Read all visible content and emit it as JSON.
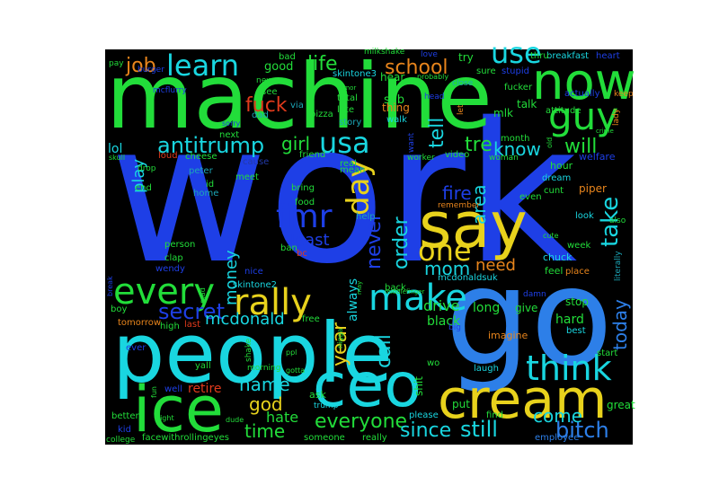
{
  "wordcloud": {
    "background": "#000000",
    "palette": {
      "blue": "#1e3fe6",
      "lightblue": "#2d7fe8",
      "cyan": "#19d6e0",
      "green": "#22dd3a",
      "lime": "#a8dd22",
      "yellow": "#e8d21c",
      "orange": "#e8851c",
      "red": "#e03a1c",
      "darkblue": "#233aa8",
      "teal": "#1ca7b8"
    },
    "words": [
      {
        "text": "work",
        "color": "blue",
        "rank": 1
      },
      {
        "text": "machine",
        "color": "green",
        "rank": 2
      },
      {
        "text": "people",
        "color": "cyan",
        "rank": 3
      },
      {
        "text": "go",
        "color": "lightblue",
        "rank": 4
      },
      {
        "text": "ceo",
        "color": "cyan",
        "rank": 5
      },
      {
        "text": "ice",
        "color": "green",
        "rank": 6
      },
      {
        "text": "cream",
        "color": "yellow",
        "rank": 7
      },
      {
        "text": "say",
        "color": "yellow",
        "rank": 8
      },
      {
        "text": "now",
        "color": "green",
        "rank": 9
      },
      {
        "text": "guy",
        "color": "green",
        "rank": 10
      },
      {
        "text": "every",
        "color": "green",
        "rank": 11
      },
      {
        "text": "rally",
        "color": "yellow",
        "rank": 12
      },
      {
        "text": "make",
        "color": "cyan",
        "rank": 13
      },
      {
        "text": "think",
        "color": "cyan",
        "rank": 14
      },
      {
        "text": "learn",
        "color": "cyan",
        "rank": 15
      },
      {
        "text": "fmr",
        "color": "blue",
        "rank": 16
      },
      {
        "text": "one",
        "color": "yellow",
        "rank": 17
      },
      {
        "text": "day",
        "color": "yellow",
        "rank": 18
      },
      {
        "text": "usa",
        "color": "cyan",
        "rank": 19
      },
      {
        "text": "use",
        "color": "cyan",
        "rank": 20
      },
      {
        "text": "antitrump",
        "color": "cyan",
        "rank": 21
      },
      {
        "text": "secret",
        "color": "blue",
        "rank": 22
      },
      {
        "text": "take",
        "color": "cyan",
        "rank": 23
      },
      {
        "text": "still",
        "color": "cyan",
        "rank": 24
      },
      {
        "text": "bitch",
        "color": "lightblue",
        "rank": 25
      },
      {
        "text": "school",
        "color": "orange",
        "rank": 26
      },
      {
        "text": "everyone",
        "color": "green",
        "rank": 27
      },
      {
        "text": "since",
        "color": "cyan",
        "rank": 28
      },
      {
        "text": "mcdonald",
        "color": "cyan",
        "rank": 29
      },
      {
        "text": "fuck",
        "color": "red",
        "rank": 30
      },
      {
        "text": "life",
        "color": "green",
        "rank": 31
      },
      {
        "text": "job",
        "color": "orange",
        "rank": 32
      },
      {
        "text": "girl",
        "color": "green",
        "rank": 33
      },
      {
        "text": "tell",
        "color": "cyan",
        "rank": 34
      },
      {
        "text": "tre",
        "color": "green",
        "rank": 35
      },
      {
        "text": "know",
        "color": "cyan",
        "rank": 36
      },
      {
        "text": "will",
        "color": "green",
        "rank": 37
      },
      {
        "text": "fire",
        "color": "blue",
        "rank": 38
      },
      {
        "text": "area",
        "color": "cyan",
        "rank": 39
      },
      {
        "text": "mom",
        "color": "cyan",
        "rank": 40
      },
      {
        "text": "need",
        "color": "orange",
        "rank": 41
      },
      {
        "text": "order",
        "color": "cyan",
        "rank": 42
      },
      {
        "text": "never",
        "color": "blue",
        "rank": 43
      },
      {
        "text": "least",
        "color": "blue",
        "rank": 44
      },
      {
        "text": "year",
        "color": "yellow",
        "rank": 45
      },
      {
        "text": "call",
        "color": "cyan",
        "rank": 46
      },
      {
        "text": "time",
        "color": "green",
        "rank": 47
      },
      {
        "text": "name",
        "color": "cyan",
        "rank": 48
      },
      {
        "text": "god",
        "color": "yellow",
        "rank": 49
      },
      {
        "text": "come",
        "color": "cyan",
        "rank": 50
      },
      {
        "text": "today",
        "color": "lightblue",
        "rank": 51
      },
      {
        "text": "play",
        "color": "cyan",
        "rank": 52
      },
      {
        "text": "money",
        "color": "cyan",
        "rank": 53
      },
      {
        "text": "hate",
        "color": "green",
        "rank": 54
      },
      {
        "text": "lol",
        "color": "cyan",
        "rank": 55
      },
      {
        "text": "drive",
        "color": "green",
        "rank": 56
      },
      {
        "text": "black",
        "color": "green",
        "rank": 57
      },
      {
        "text": "hard",
        "color": "green",
        "rank": 58
      },
      {
        "text": "always",
        "color": "cyan",
        "rank": 59
      },
      {
        "text": "retire",
        "color": "red",
        "rank": 60
      },
      {
        "text": "long",
        "color": "green",
        "rank": 61
      },
      {
        "text": "good",
        "color": "green",
        "rank": 62
      },
      {
        "text": "bad",
        "color": "green",
        "rank": 63
      },
      {
        "text": "hear",
        "color": "green",
        "rank": 64
      },
      {
        "text": "try",
        "color": "green",
        "rank": 65
      },
      {
        "text": "sob",
        "color": "green",
        "rank": 66
      },
      {
        "text": "mlk",
        "color": "green",
        "rank": 67
      },
      {
        "text": "talk",
        "color": "green",
        "rank": 68
      },
      {
        "text": "thing",
        "color": "orange",
        "rank": 69
      },
      {
        "text": "skintone3",
        "color": "cyan",
        "rank": 70
      },
      {
        "text": "skintone2",
        "color": "cyan",
        "rank": 71
      },
      {
        "text": "mcdonaldsuk",
        "color": "cyan",
        "rank": 72
      },
      {
        "text": "facewithrollingeyes",
        "color": "green",
        "rank": 73
      },
      {
        "text": "employee",
        "color": "lightblue",
        "rank": 74
      },
      {
        "text": "breakfast",
        "color": "cyan",
        "rank": 75
      },
      {
        "text": "heart",
        "color": "blue",
        "rank": 76
      },
      {
        "text": "milkshake",
        "color": "green",
        "rank": 77
      },
      {
        "text": "imagine",
        "color": "orange",
        "rank": 78
      },
      {
        "text": "give",
        "color": "green",
        "rank": 79
      },
      {
        "text": "stop",
        "color": "green",
        "rank": 80
      },
      {
        "text": "best",
        "color": "cyan",
        "rank": 81
      },
      {
        "text": "start",
        "color": "green",
        "rank": 82
      },
      {
        "text": "great",
        "color": "green",
        "rank": 83
      },
      {
        "text": "laugh",
        "color": "cyan",
        "rank": 84
      },
      {
        "text": "put",
        "color": "green",
        "rank": 85
      },
      {
        "text": "wo",
        "color": "green",
        "rank": 86
      },
      {
        "text": "shit",
        "color": "green",
        "rank": 87
      },
      {
        "text": "ask",
        "color": "green",
        "rank": 88
      },
      {
        "text": "trump",
        "color": "cyan",
        "rank": 89
      },
      {
        "text": "someone",
        "color": "green",
        "rank": 90
      },
      {
        "text": "really",
        "color": "green",
        "rank": 91
      },
      {
        "text": "please",
        "color": "cyan",
        "rank": 92
      },
      {
        "text": "find",
        "color": "green",
        "rank": 93
      },
      {
        "text": "video",
        "color": "green",
        "rank": 94
      },
      {
        "text": "woman",
        "color": "green",
        "rank": 95
      },
      {
        "text": "worker",
        "color": "green",
        "rank": 96
      },
      {
        "text": "hour",
        "color": "green",
        "rank": 97
      },
      {
        "text": "welfare",
        "color": "blue",
        "rank": 98
      },
      {
        "text": "dream",
        "color": "cyan",
        "rank": 99
      },
      {
        "text": "cunt",
        "color": "green",
        "rank": 100
      },
      {
        "text": "piper",
        "color": "orange",
        "rank": 101
      },
      {
        "text": "look",
        "color": "cyan",
        "rank": 102
      },
      {
        "text": "week",
        "color": "green",
        "rank": 103
      },
      {
        "text": "chuck",
        "color": "cyan",
        "rank": 104
      },
      {
        "text": "feel",
        "color": "green",
        "rank": 105
      },
      {
        "text": "place",
        "color": "orange",
        "rank": 106
      },
      {
        "text": "literally",
        "color": "teal",
        "rank": 107
      },
      {
        "text": "month",
        "color": "green",
        "rank": 108
      },
      {
        "text": "remember",
        "color": "orange",
        "rank": 109
      },
      {
        "text": "even",
        "color": "green",
        "rank": 110
      },
      {
        "text": "thru",
        "color": "green",
        "rank": 111
      },
      {
        "text": "sure",
        "color": "green",
        "rank": 112
      },
      {
        "text": "stupid",
        "color": "blue",
        "rank": 113
      },
      {
        "text": "fucker",
        "color": "green",
        "rank": 114
      },
      {
        "text": "attitude",
        "color": "green",
        "rank": 115
      },
      {
        "text": "actually",
        "color": "blue",
        "rank": 116
      },
      {
        "text": "keep",
        "color": "orange",
        "rank": 117
      },
      {
        "text": "lady",
        "color": "orange",
        "rank": 118
      },
      {
        "text": "close",
        "color": "teal",
        "rank": 119
      },
      {
        "text": "head",
        "color": "blue",
        "rank": 120
      },
      {
        "text": "let",
        "color": "orange",
        "rank": 121
      },
      {
        "text": "walk",
        "color": "cyan",
        "rank": 122
      },
      {
        "text": "want",
        "color": "blue",
        "rank": 123
      },
      {
        "text": "mean",
        "color": "green",
        "rank": 124
      },
      {
        "text": "real",
        "color": "green",
        "rank": 125
      },
      {
        "text": "total",
        "color": "green",
        "rank": 126
      },
      {
        "text": "late",
        "color": "green",
        "rank": 127
      },
      {
        "text": "story",
        "color": "teal",
        "rank": 128
      },
      {
        "text": "friend",
        "color": "green",
        "rank": 129
      },
      {
        "text": "pizza",
        "color": "green",
        "rank": 130
      },
      {
        "text": "via",
        "color": "teal",
        "rank": 131
      },
      {
        "text": "see",
        "color": "green",
        "rank": 132
      },
      {
        "text": "dad",
        "color": "teal",
        "rank": 133
      },
      {
        "text": "next",
        "color": "green",
        "rank": 134
      },
      {
        "text": "cause",
        "color": "darkblue",
        "rank": 135
      },
      {
        "text": "meet",
        "color": "green",
        "rank": 136
      },
      {
        "text": "loud",
        "color": "red",
        "rank": 137
      },
      {
        "text": "cheese",
        "color": "green",
        "rank": 138
      },
      {
        "text": "peter",
        "color": "teal",
        "rank": 139
      },
      {
        "text": "id",
        "color": "green",
        "rank": 140
      },
      {
        "text": "home",
        "color": "teal",
        "rank": 141
      },
      {
        "text": "end",
        "color": "green",
        "rank": 142
      },
      {
        "text": "bring",
        "color": "green",
        "rank": 143
      },
      {
        "text": "food",
        "color": "green",
        "rank": 144
      },
      {
        "text": "help",
        "color": "teal",
        "rank": 145
      },
      {
        "text": "ban",
        "color": "green",
        "rank": 146
      },
      {
        "text": "bc",
        "color": "red",
        "rank": 147
      },
      {
        "text": "free",
        "color": "green",
        "rank": 148
      },
      {
        "text": "person",
        "color": "green",
        "rank": 149
      },
      {
        "text": "clap",
        "color": "green",
        "rank": 150
      },
      {
        "text": "wendy",
        "color": "blue",
        "rank": 151
      },
      {
        "text": "nice",
        "color": "blue",
        "rank": 152
      },
      {
        "text": "high",
        "color": "green",
        "rank": 153
      },
      {
        "text": "last",
        "color": "red",
        "rank": 154
      },
      {
        "text": "boy",
        "color": "green",
        "rank": 155
      },
      {
        "text": "tomorrow",
        "color": "orange",
        "rank": 156
      },
      {
        "text": "ever",
        "color": "blue",
        "rank": 157
      },
      {
        "text": "yall",
        "color": "green",
        "rank": 158
      },
      {
        "text": "well",
        "color": "blue",
        "rank": 159
      },
      {
        "text": "better",
        "color": "green",
        "rank": 160
      },
      {
        "text": "kid",
        "color": "blue",
        "rank": 161
      },
      {
        "text": "college",
        "color": "green",
        "rank": 162
      },
      {
        "text": "morning",
        "color": "green",
        "rank": 163
      },
      {
        "text": "shake",
        "color": "green",
        "rank": 164
      },
      {
        "text": "pay",
        "color": "green",
        "rank": 165
      },
      {
        "text": "mcflurry",
        "color": "blue",
        "rank": 166
      },
      {
        "text": "burger",
        "color": "blue",
        "rank": 167
      },
      {
        "text": "new",
        "color": "green",
        "rank": 168
      },
      {
        "text": "love",
        "color": "blue",
        "rank": 169
      },
      {
        "text": "probably",
        "color": "green",
        "rank": 170
      },
      {
        "text": "sorry",
        "color": "blue",
        "rank": 171
      },
      {
        "text": "skull",
        "color": "green",
        "rank": 172
      },
      {
        "text": "drop",
        "color": "green",
        "rank": 173
      },
      {
        "text": "break",
        "color": "blue",
        "rank": 174
      },
      {
        "text": "mad",
        "color": "green",
        "rank": 175
      },
      {
        "text": "ppl",
        "color": "green",
        "rank": 176
      },
      {
        "text": "nigga",
        "color": "green",
        "rank": 177
      },
      {
        "text": "gotta",
        "color": "green",
        "rank": 178
      },
      {
        "text": "big",
        "color": "blue",
        "rank": 179
      },
      {
        "text": "night",
        "color": "green",
        "rank": 180
      },
      {
        "text": "fun",
        "color": "green",
        "rank": 181
      },
      {
        "text": "dude",
        "color": "green",
        "rank": 182
      },
      {
        "text": "also",
        "color": "green",
        "rank": 183
      },
      {
        "text": "cute",
        "color": "green",
        "rank": 184
      },
      {
        "text": "rumor",
        "color": "green",
        "rank": 185
      },
      {
        "text": "crime",
        "color": "green",
        "rank": 186
      },
      {
        "text": "old",
        "color": "green",
        "rank": 187
      },
      {
        "text": "middlefinger",
        "color": "green",
        "rank": 188
      },
      {
        "text": "damn",
        "color": "blue",
        "rank": 189
      },
      {
        "text": "may",
        "color": "green",
        "rank": 190
      },
      {
        "text": "back",
        "color": "green",
        "rank": 191
      }
    ]
  }
}
